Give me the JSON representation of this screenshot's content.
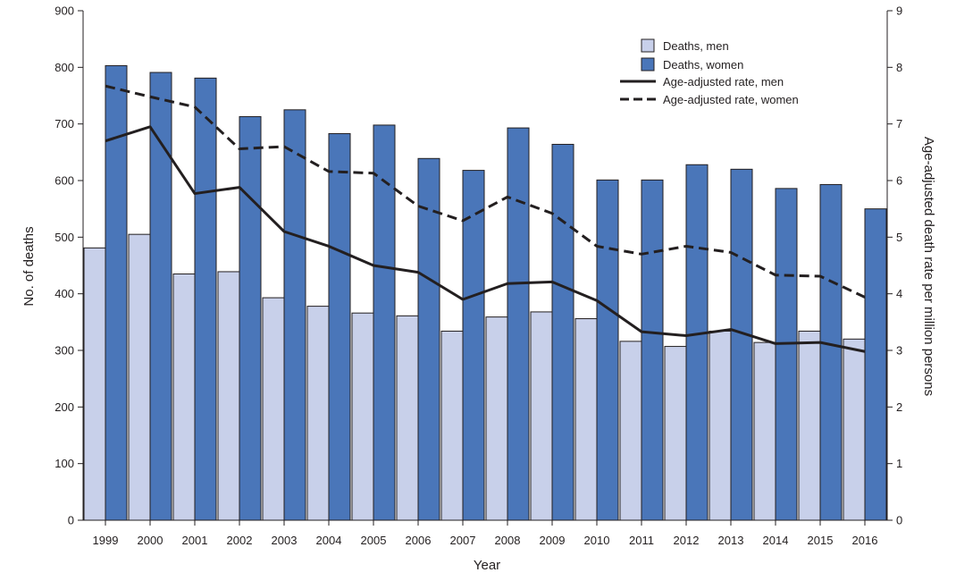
{
  "chart_data": {
    "type": "bar",
    "xlabel": "Year",
    "ylabel": "No. of deaths",
    "y2label": "Age-adjusted death rate per million persons",
    "ylim": [
      0,
      900
    ],
    "y2lim": [
      0,
      9
    ],
    "yticks": [
      "0",
      "100",
      "200",
      "300",
      "400",
      "500",
      "600",
      "700",
      "800",
      "900"
    ],
    "y2ticks": [
      "0",
      "1",
      "2",
      "3",
      "4",
      "5",
      "6",
      "7",
      "8",
      "9"
    ],
    "categories": [
      "1999",
      "2000",
      "2001",
      "2002",
      "2003",
      "2004",
      "2005",
      "2006",
      "2007",
      "2008",
      "2009",
      "2010",
      "2011",
      "2012",
      "2013",
      "2014",
      "2015",
      "2016"
    ],
    "bar_series": [
      {
        "name": "Deaths, men",
        "color": "#c8d0ea",
        "values": [
          481,
          505,
          435,
          439,
          393,
          378,
          366,
          361,
          334,
          359,
          368,
          356,
          316,
          307,
          334,
          314,
          334,
          320
        ]
      },
      {
        "name": "Deaths, women",
        "color": "#4a76b9",
        "values": [
          803,
          791,
          781,
          713,
          725,
          683,
          698,
          639,
          618,
          693,
          664,
          601,
          601,
          628,
          620,
          586,
          593,
          550
        ]
      }
    ],
    "line_series": [
      {
        "name": "Age-adjusted rate, men",
        "style": "solid",
        "axis": "right",
        "values": [
          6.7,
          6.95,
          5.77,
          5.88,
          5.1,
          4.84,
          4.5,
          4.38,
          3.9,
          4.18,
          4.21,
          3.88,
          3.33,
          3.26,
          3.37,
          3.12,
          3.14,
          2.98
        ]
      },
      {
        "name": "Age-adjusted rate, women",
        "style": "dashed",
        "axis": "right",
        "values": [
          7.67,
          7.48,
          7.3,
          6.56,
          6.6,
          6.16,
          6.13,
          5.55,
          5.29,
          5.71,
          5.42,
          4.84,
          4.7,
          4.84,
          4.73,
          4.33,
          4.31,
          3.94
        ]
      }
    ],
    "legend_position": "top-right",
    "grid": false
  }
}
